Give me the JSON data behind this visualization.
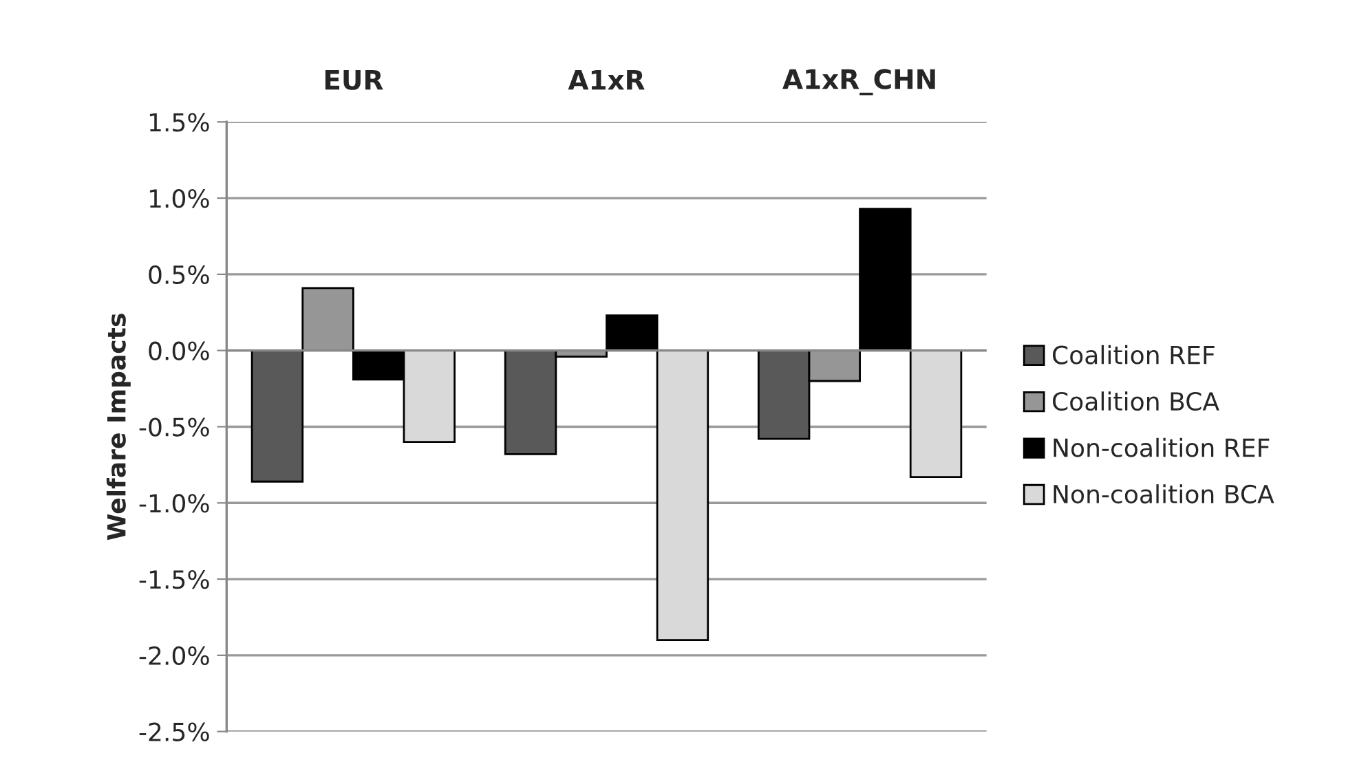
{
  "chart_data": {
    "type": "bar",
    "ylabel": "Welfare Impacts",
    "categories": [
      "EUR",
      "A1xR",
      "A1xR_CHN"
    ],
    "series": [
      {
        "name": "Coalition REF",
        "color": "#595959",
        "values": [
          -0.86,
          -0.68,
          -0.58
        ]
      },
      {
        "name": "Coalition BCA",
        "color": "#969696",
        "values": [
          0.41,
          -0.04,
          -0.2
        ]
      },
      {
        "name": "Non-coalition REF",
        "color": "#000000",
        "values": [
          -0.19,
          0.23,
          0.93
        ]
      },
      {
        "name": "Non-coalition BCA",
        "color": "#d9d9d9",
        "values": [
          -0.6,
          -1.9,
          -0.83
        ]
      }
    ],
    "ylim": [
      -2.5,
      1.5
    ],
    "yticks": [
      {
        "value": -2.5,
        "label": "-2.5%"
      },
      {
        "value": -2.0,
        "label": "-2.0%"
      },
      {
        "value": -1.5,
        "label": "-1.5%"
      },
      {
        "value": -1.0,
        "label": "-1.0%"
      },
      {
        "value": -0.5,
        "label": "-0.5%"
      },
      {
        "value": 0.0,
        "label": "0.0%"
      },
      {
        "value": 0.5,
        "label": "0.5%"
      },
      {
        "value": 1.0,
        "label": "1.0%"
      },
      {
        "value": 1.5,
        "label": "1.5%"
      }
    ],
    "grid": "y",
    "legend": "right"
  }
}
